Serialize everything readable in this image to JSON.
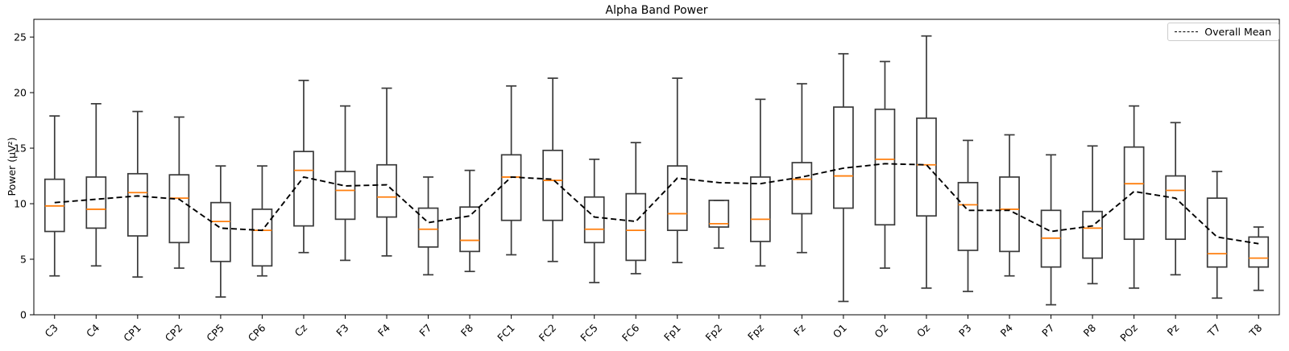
{
  "figure": {
    "title": "Alpha Band Power",
    "ylabel": "Power (μV²)",
    "legend_label": "Overall Mean"
  },
  "chart_data": {
    "type": "boxplot",
    "title": "Alpha Band Power",
    "xlabel": "",
    "ylabel": "Power (μV²)",
    "ylim": [
      0,
      26.6
    ],
    "yticks": [
      0,
      5,
      10,
      15,
      20,
      25
    ],
    "grid": false,
    "legend": {
      "position": "upper right",
      "entries": [
        {
          "label": "Overall Mean",
          "style": "black dashed line"
        }
      ]
    },
    "categories": [
      "C3",
      "C4",
      "CP1",
      "CP2",
      "CP5",
      "CP6",
      "Cz",
      "F3",
      "F4",
      "F7",
      "F8",
      "FC1",
      "FC2",
      "FC5",
      "FC6",
      "Fp1",
      "Fp2",
      "Fpz",
      "Fz",
      "O1",
      "O2",
      "Oz",
      "P3",
      "P4",
      "P7",
      "P8",
      "POz",
      "Pz",
      "T7",
      "T8"
    ],
    "boxes": [
      {
        "label": "C3",
        "whislo": 3.5,
        "q1": 7.5,
        "med": 9.8,
        "q3": 12.2,
        "whishi": 17.9
      },
      {
        "label": "C4",
        "whislo": 4.4,
        "q1": 7.8,
        "med": 9.5,
        "q3": 12.4,
        "whishi": 19.0
      },
      {
        "label": "CP1",
        "whislo": 3.4,
        "q1": 7.1,
        "med": 11.0,
        "q3": 12.7,
        "whishi": 18.3
      },
      {
        "label": "CP2",
        "whislo": 4.2,
        "q1": 6.5,
        "med": 10.5,
        "q3": 12.6,
        "whishi": 17.8
      },
      {
        "label": "CP5",
        "whislo": 1.6,
        "q1": 4.8,
        "med": 8.4,
        "q3": 10.1,
        "whishi": 13.4
      },
      {
        "label": "CP6",
        "whislo": 3.5,
        "q1": 4.4,
        "med": 7.6,
        "q3": 9.5,
        "whishi": 13.4
      },
      {
        "label": "Cz",
        "whislo": 5.6,
        "q1": 8.0,
        "med": 13.0,
        "q3": 14.7,
        "whishi": 21.1
      },
      {
        "label": "F3",
        "whislo": 4.9,
        "q1": 8.6,
        "med": 11.2,
        "q3": 12.9,
        "whishi": 18.8
      },
      {
        "label": "F4",
        "whislo": 5.3,
        "q1": 8.8,
        "med": 10.6,
        "q3": 13.5,
        "whishi": 20.4
      },
      {
        "label": "F7",
        "whislo": 3.6,
        "q1": 6.1,
        "med": 7.7,
        "q3": 9.6,
        "whishi": 12.4
      },
      {
        "label": "F8",
        "whislo": 3.9,
        "q1": 5.7,
        "med": 6.7,
        "q3": 9.7,
        "whishi": 13.0
      },
      {
        "label": "FC1",
        "whislo": 5.4,
        "q1": 8.5,
        "med": 12.4,
        "q3": 14.4,
        "whishi": 20.6
      },
      {
        "label": "FC2",
        "whislo": 4.8,
        "q1": 8.5,
        "med": 12.1,
        "q3": 14.8,
        "whishi": 21.3
      },
      {
        "label": "FC5",
        "whislo": 2.9,
        "q1": 6.5,
        "med": 7.7,
        "q3": 10.6,
        "whishi": 14.0
      },
      {
        "label": "FC6",
        "whislo": 3.7,
        "q1": 4.9,
        "med": 7.6,
        "q3": 10.9,
        "whishi": 15.5
      },
      {
        "label": "Fp1",
        "whislo": 4.7,
        "q1": 7.6,
        "med": 9.1,
        "q3": 13.4,
        "whishi": 21.3
      },
      {
        "label": "Fp2",
        "whislo": 6.0,
        "q1": 7.9,
        "med": 8.2,
        "q3": 10.3,
        "whishi": 10.3
      },
      {
        "label": "Fpz",
        "whislo": 4.4,
        "q1": 6.6,
        "med": 8.6,
        "q3": 12.4,
        "whishi": 19.4
      },
      {
        "label": "Fz",
        "whislo": 5.6,
        "q1": 9.1,
        "med": 12.2,
        "q3": 13.7,
        "whishi": 20.8
      },
      {
        "label": "O1",
        "whislo": 1.2,
        "q1": 9.6,
        "med": 12.5,
        "q3": 18.7,
        "whishi": 23.5
      },
      {
        "label": "O2",
        "whislo": 4.2,
        "q1": 8.1,
        "med": 14.0,
        "q3": 18.5,
        "whishi": 22.8
      },
      {
        "label": "Oz",
        "whislo": 2.4,
        "q1": 8.9,
        "med": 13.5,
        "q3": 17.7,
        "whishi": 25.1
      },
      {
        "label": "P3",
        "whislo": 2.1,
        "q1": 5.8,
        "med": 9.9,
        "q3": 11.9,
        "whishi": 15.7
      },
      {
        "label": "P4",
        "whislo": 3.5,
        "q1": 5.7,
        "med": 9.5,
        "q3": 12.4,
        "whishi": 16.2
      },
      {
        "label": "P7",
        "whislo": 0.9,
        "q1": 4.3,
        "med": 6.9,
        "q3": 9.4,
        "whishi": 14.4
      },
      {
        "label": "P8",
        "whislo": 2.8,
        "q1": 5.1,
        "med": 7.8,
        "q3": 9.3,
        "whishi": 15.2
      },
      {
        "label": "POz",
        "whislo": 2.4,
        "q1": 6.8,
        "med": 11.8,
        "q3": 15.1,
        "whishi": 18.8
      },
      {
        "label": "Pz",
        "whislo": 3.6,
        "q1": 6.8,
        "med": 11.2,
        "q3": 12.5,
        "whishi": 17.3
      },
      {
        "label": "T7",
        "whislo": 1.5,
        "q1": 4.3,
        "med": 5.5,
        "q3": 10.5,
        "whishi": 12.9
      },
      {
        "label": "T8",
        "whislo": 2.2,
        "q1": 4.3,
        "med": 5.1,
        "q3": 7.0,
        "whishi": 7.9
      }
    ],
    "series": [
      {
        "name": "Overall Mean",
        "type": "line",
        "values": [
          10.1,
          10.4,
          10.7,
          10.4,
          7.8,
          7.6,
          12.4,
          11.6,
          11.7,
          8.3,
          8.9,
          12.4,
          12.2,
          8.8,
          8.4,
          12.3,
          11.9,
          11.8,
          12.4,
          13.2,
          13.6,
          13.5,
          9.4,
          9.4,
          7.5,
          8.0,
          11.1,
          10.5,
          7.0,
          6.4
        ]
      }
    ],
    "colors": {
      "background": "#ffffff",
      "box_edge": "#3a3a3a",
      "median": "#ff7f0e",
      "mean_line": "#000000",
      "spine": "#000000",
      "legend_border": "#cccccc"
    }
  }
}
